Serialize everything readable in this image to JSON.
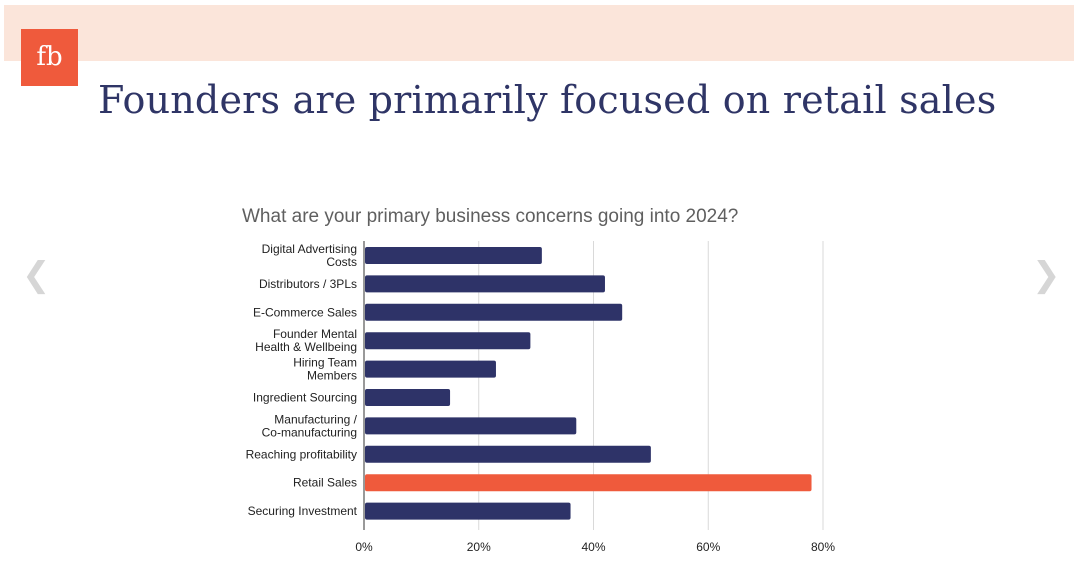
{
  "slide": {
    "logo_text": "fb",
    "title": "Founders are primarily focused on retail sales",
    "prev_icon": "chevron-left-icon",
    "next_icon": "chevron-right-icon"
  },
  "colors": {
    "header_band": "#fbe5da",
    "logo": "#ef5a3c",
    "title": "#2f3566",
    "bar": "#2e3368",
    "highlight_bar": "#ef5a3c"
  },
  "chart_data": {
    "type": "bar",
    "orientation": "horizontal",
    "title": "What are your primary business concerns going into 2024?",
    "categories": [
      [
        "Digital Advertising",
        "Costs"
      ],
      [
        "Distributors / 3PLs"
      ],
      [
        "E-Commerce Sales"
      ],
      [
        "Founder Mental",
        "Health & Wellbeing"
      ],
      [
        "Hiring Team",
        "Members"
      ],
      [
        "Ingredient Sourcing"
      ],
      [
        "Manufacturing /",
        "Co-manufacturing"
      ],
      [
        "Reaching profitability"
      ],
      [
        "Retail Sales"
      ],
      [
        "Securing Investment"
      ]
    ],
    "values": [
      31,
      42,
      45,
      29,
      23,
      15,
      37,
      50,
      78,
      36
    ],
    "unit": "%",
    "highlight": "Retail Sales",
    "xlim": [
      0,
      80
    ],
    "xticks": [
      "0%",
      "20%",
      "40%",
      "60%",
      "80%"
    ],
    "grid": true
  }
}
